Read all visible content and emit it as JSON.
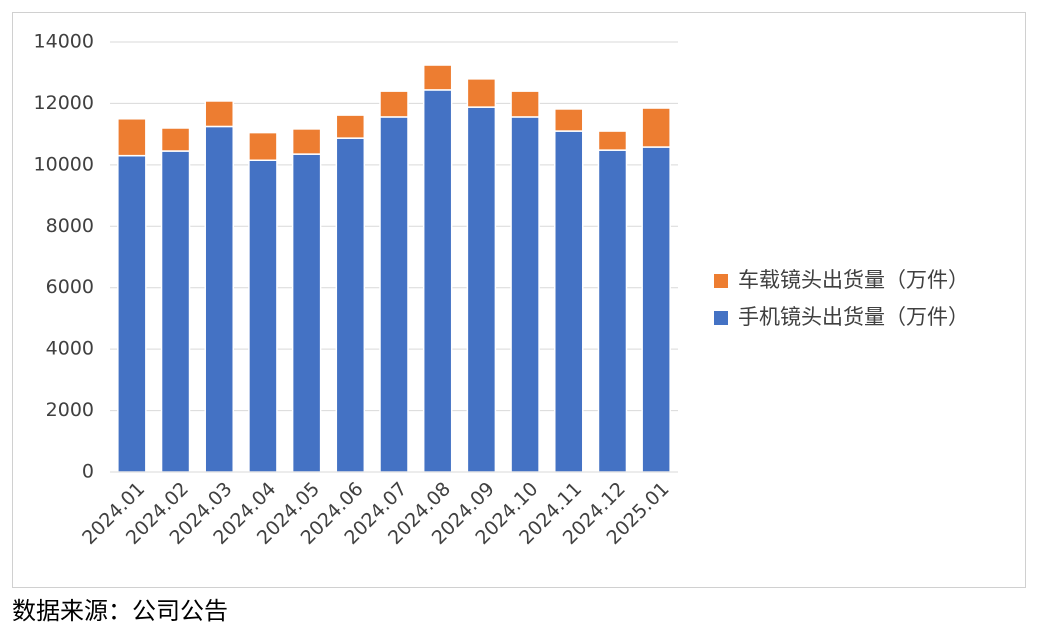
{
  "chart_data": {
    "type": "stacked-bar",
    "categories": [
      "2024.01",
      "2024.02",
      "2024.03",
      "2024.04",
      "2024.05",
      "2024.06",
      "2024.07",
      "2024.08",
      "2024.09",
      "2024.10",
      "2024.11",
      "2024.12",
      "2025.01"
    ],
    "series": [
      {
        "name": "手机镜头出货量（万件）",
        "color": "#4472c4",
        "values": [
          10300,
          10450,
          11250,
          10150,
          10350,
          10870,
          11560,
          12440,
          11880,
          11560,
          11100,
          10480,
          10580
        ]
      },
      {
        "name": "车载镜头出货量（万件）",
        "color": "#ed7d31",
        "values": [
          1200,
          750,
          830,
          900,
          820,
          750,
          840,
          810,
          920,
          840,
          720,
          620,
          1270
        ]
      }
    ],
    "ylim": [
      0,
      14000
    ],
    "yticks": [
      0,
      2000,
      4000,
      6000,
      8000,
      10000,
      12000,
      14000
    ],
    "grid": true,
    "source": "数据来源：公司公告"
  }
}
